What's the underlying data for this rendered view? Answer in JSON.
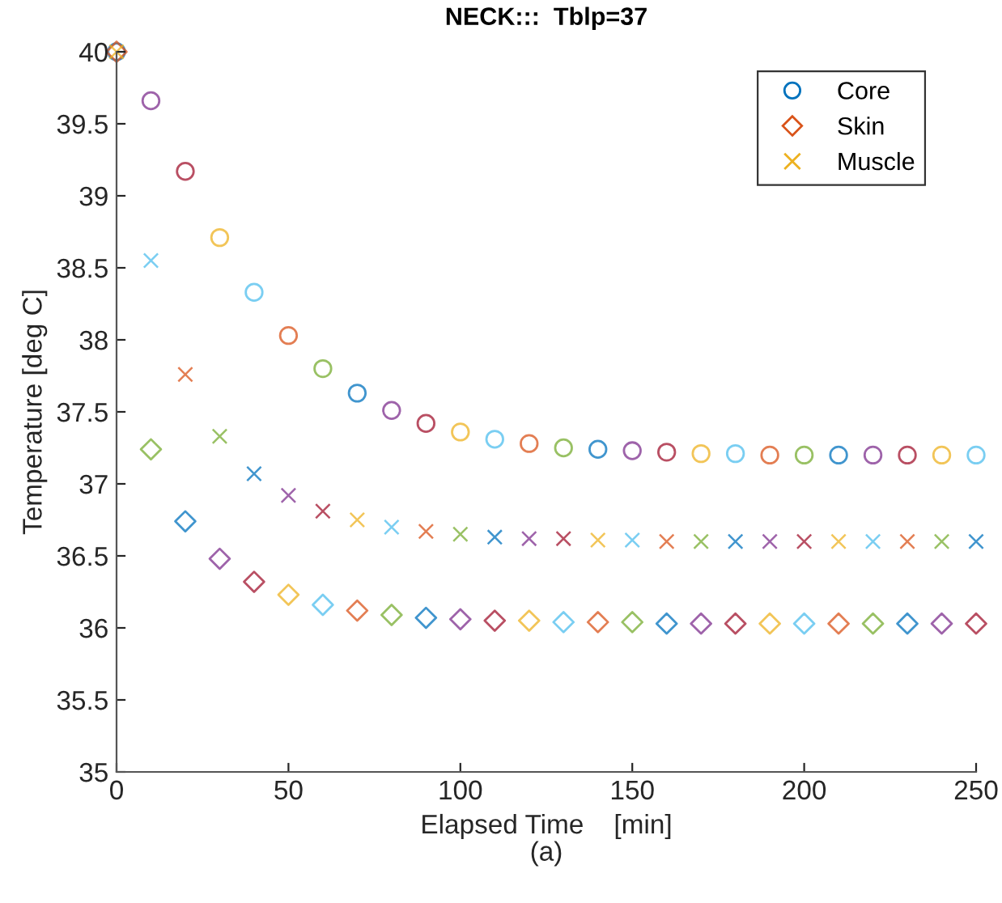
{
  "chart_data": {
    "type": "scatter",
    "title": "NECK:::  Tblp=37",
    "xlabel": "Elapsed Time    [min]\n(a)",
    "ylabel": "Temperature [deg C]",
    "x": [
      0,
      10,
      20,
      30,
      40,
      50,
      60,
      70,
      80,
      90,
      100,
      110,
      120,
      130,
      140,
      150,
      160,
      170,
      180,
      190,
      200,
      210,
      220,
      230,
      240,
      250
    ],
    "series": [
      {
        "name": "Core",
        "color": "#0072bd",
        "marker": "circle",
        "values": [
          40,
          39.66,
          39.17,
          38.71,
          38.33,
          38.03,
          37.8,
          37.63,
          37.51,
          37.42,
          37.36,
          37.31,
          37.28,
          37.25,
          37.24,
          37.23,
          37.22,
          37.21,
          37.21,
          37.2,
          37.2,
          37.2,
          37.2,
          37.2,
          37.2,
          37.2
        ],
        "colors": [
          "#0072bd",
          "#7e2f8e",
          "#a2142f",
          "#edb120",
          "#4dbeee",
          "#d95319",
          "#77ac30",
          "#0072bd",
          "#7e2f8e",
          "#a2142f",
          "#edb120",
          "#4dbeee",
          "#d95319",
          "#77ac30",
          "#0072bd",
          "#7e2f8e",
          "#a2142f",
          "#edb120",
          "#4dbeee",
          "#d95319",
          "#77ac30",
          "#0072bd",
          "#7e2f8e",
          "#a2142f",
          "#edb120",
          "#4dbeee"
        ]
      },
      {
        "name": "Skin",
        "color": "#d95319",
        "marker": "diamond",
        "values": [
          40,
          37.24,
          36.74,
          36.48,
          36.32,
          36.23,
          36.16,
          36.12,
          36.09,
          36.07,
          36.06,
          36.05,
          36.05,
          36.04,
          36.04,
          36.04,
          36.03,
          36.03,
          36.03,
          36.03,
          36.03,
          36.03,
          36.03,
          36.03,
          36.03,
          36.03
        ],
        "colors": [
          "#d95319",
          "#77ac30",
          "#0072bd",
          "#7e2f8e",
          "#a2142f",
          "#edb120",
          "#4dbeee",
          "#d95319",
          "#77ac30",
          "#0072bd",
          "#7e2f8e",
          "#a2142f",
          "#edb120",
          "#4dbeee",
          "#d95319",
          "#77ac30",
          "#0072bd",
          "#7e2f8e",
          "#a2142f",
          "#edb120",
          "#4dbeee",
          "#d95319",
          "#77ac30",
          "#0072bd",
          "#7e2f8e",
          "#a2142f"
        ]
      },
      {
        "name": "Muscle",
        "color": "#edb120",
        "marker": "cross",
        "values": [
          40,
          38.55,
          37.76,
          37.33,
          37.07,
          36.92,
          36.81,
          36.75,
          36.7,
          36.67,
          36.65,
          36.63,
          36.62,
          36.62,
          36.61,
          36.61,
          36.6,
          36.6,
          36.6,
          36.6,
          36.6,
          36.6,
          36.6,
          36.6,
          36.6,
          36.6
        ],
        "colors": [
          "#edb120",
          "#4dbeee",
          "#d95319",
          "#77ac30",
          "#0072bd",
          "#7e2f8e",
          "#a2142f",
          "#edb120",
          "#4dbeee",
          "#d95319",
          "#77ac30",
          "#0072bd",
          "#7e2f8e",
          "#a2142f",
          "#edb120",
          "#4dbeee",
          "#d95319",
          "#77ac30",
          "#0072bd",
          "#7e2f8e",
          "#a2142f",
          "#edb120",
          "#4dbeee",
          "#d95319",
          "#77ac30",
          "#0072bd"
        ]
      }
    ],
    "xlim": [
      0,
      250
    ],
    "xticks": [
      0,
      50,
      100,
      150,
      200,
      250
    ],
    "ylim": [
      35,
      40
    ],
    "yticks": [
      35,
      35.5,
      36,
      36.5,
      37,
      37.5,
      38,
      38.5,
      39,
      39.5,
      40
    ],
    "legend": "top right",
    "grid": false
  }
}
